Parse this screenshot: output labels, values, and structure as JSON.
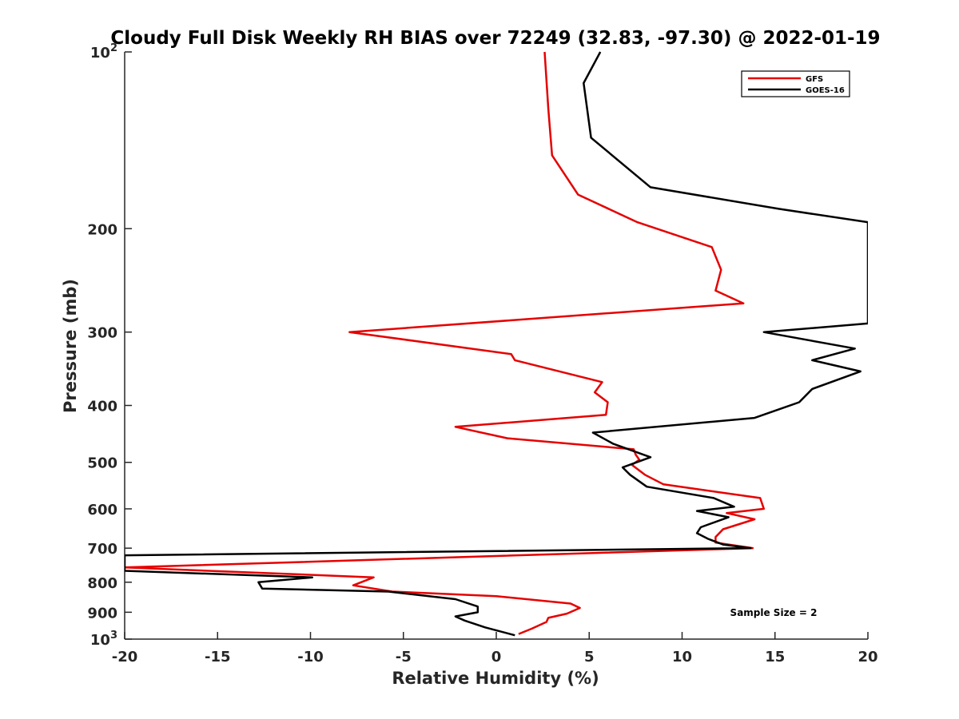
{
  "chart_data": {
    "type": "line",
    "title": "Cloudy Full Disk Weekly RH BIAS over 72249 (32.83, -97.30) @ 2022-01-19",
    "xlabel": "Relative Humidity (%)",
    "ylabel": "Pressure (mb)",
    "xlim": [
      -20,
      20
    ],
    "ylim": [
      100,
      1000
    ],
    "y_scale": "log",
    "y_reversed": true,
    "x_ticks": [
      -20,
      -15,
      -10,
      -5,
      0,
      5,
      10,
      15,
      20
    ],
    "x_tick_labels": [
      "-20",
      "-15",
      "-10",
      "-5",
      "0",
      "5",
      "10",
      "15",
      "20"
    ],
    "y_ticks": [
      100,
      200,
      300,
      400,
      500,
      600,
      700,
      800,
      900,
      1000
    ],
    "y_tick_labels": [
      "10^2",
      "200",
      "300",
      "400",
      "500",
      "600",
      "700",
      "800",
      "900",
      "10^3"
    ],
    "grid": false,
    "legend_position": "top-right",
    "annotation": "Sample Size = 2",
    "series": [
      {
        "name": "GFS",
        "color": "#e60000",
        "points": [
          [
            2.6,
            100
          ],
          [
            2.8,
            125
          ],
          [
            3.0,
            150
          ],
          [
            4.4,
            175
          ],
          [
            7.6,
            195
          ],
          [
            11.6,
            215
          ],
          [
            12.1,
            235
          ],
          [
            11.8,
            255
          ],
          [
            13.3,
            268
          ],
          [
            -7.9,
            300
          ],
          [
            0.8,
            327
          ],
          [
            1.0,
            335
          ],
          [
            5.7,
            365
          ],
          [
            5.3,
            380
          ],
          [
            6.0,
            395
          ],
          [
            5.9,
            415
          ],
          [
            -2.2,
            435
          ],
          [
            0.6,
            455
          ],
          [
            7.4,
            475
          ],
          [
            7.5,
            485
          ],
          [
            7.7,
            495
          ],
          [
            7.3,
            505
          ],
          [
            8.0,
            525
          ],
          [
            9.0,
            545
          ],
          [
            14.2,
            575
          ],
          [
            14.4,
            600
          ],
          [
            12.4,
            610
          ],
          [
            13.9,
            625
          ],
          [
            12.2,
            650
          ],
          [
            11.8,
            670
          ],
          [
            11.8,
            685
          ],
          [
            13.8,
            700
          ],
          [
            -20,
            755
          ],
          [
            -6.6,
            785
          ],
          [
            -7.7,
            810
          ],
          [
            -5.6,
            830
          ],
          [
            0.0,
            845
          ],
          [
            4.0,
            870
          ],
          [
            4.5,
            885
          ],
          [
            3.8,
            905
          ],
          [
            2.8,
            920
          ],
          [
            2.7,
            935
          ],
          [
            1.9,
            960
          ],
          [
            1.2,
            980
          ]
        ]
      },
      {
        "name": "GOES-16",
        "color": "#000000",
        "points": [
          [
            5.6,
            100
          ],
          [
            4.7,
            113
          ],
          [
            5.1,
            140
          ],
          [
            8.3,
            170
          ],
          [
            15.2,
            185
          ],
          [
            20.0,
            195
          ],
          [
            20.0,
            290
          ],
          [
            14.4,
            300
          ],
          [
            19.3,
            320
          ],
          [
            17.0,
            335
          ],
          [
            19.6,
            350
          ],
          [
            17.0,
            375
          ],
          [
            16.3,
            395
          ],
          [
            13.9,
            420
          ],
          [
            5.2,
            445
          ],
          [
            6.3,
            465
          ],
          [
            8.3,
            490
          ],
          [
            6.8,
            510
          ],
          [
            7.2,
            525
          ],
          [
            8.1,
            550
          ],
          [
            11.7,
            575
          ],
          [
            12.8,
            595
          ],
          [
            10.8,
            605
          ],
          [
            12.5,
            620
          ],
          [
            11.0,
            645
          ],
          [
            10.8,
            660
          ],
          [
            11.4,
            675
          ],
          [
            12.2,
            690
          ],
          [
            13.7,
            700
          ],
          [
            -20,
            720
          ],
          [
            -20,
            765
          ],
          [
            -9.9,
            785
          ],
          [
            -12.8,
            800
          ],
          [
            -12.6,
            820
          ],
          [
            -5.8,
            830
          ],
          [
            -2.2,
            855
          ],
          [
            -1.0,
            880
          ],
          [
            -1.0,
            900
          ],
          [
            -2.2,
            915
          ],
          [
            -1.7,
            930
          ],
          [
            -0.6,
            955
          ],
          [
            1.0,
            985
          ]
        ]
      }
    ]
  }
}
